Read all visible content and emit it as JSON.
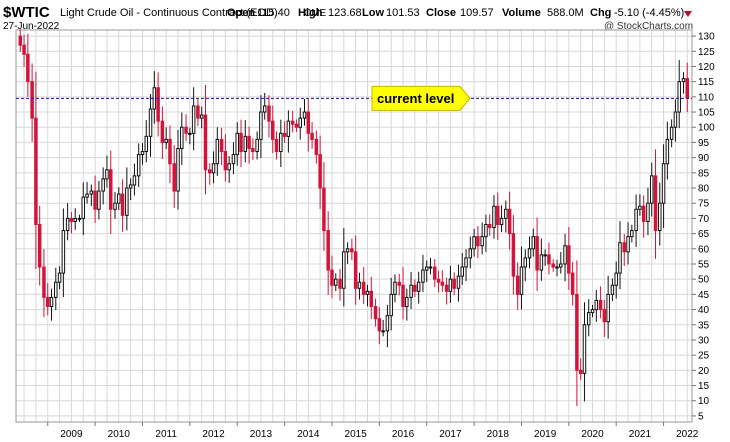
{
  "header": {
    "symbol": "$WTIC",
    "name": "Light Crude Oil - Continuous Contract (EOD)",
    "exchange": "CME",
    "date": "27-Jun-2022",
    "open_label": "Open",
    "open": "115.40",
    "high_label": "High",
    "high": "123.68",
    "low_label": "Low",
    "low": "101.53",
    "close_label": "Close",
    "close": "109.57",
    "volume_label": "Volume",
    "volume": "588.0M",
    "chg_label": "Chg",
    "chg": "-5.10 (-4.45%)",
    "watermark": "@ StockCharts.com"
  },
  "colors": {
    "up": "#111111",
    "down": "#d2143a",
    "level_line": "#1a1a8c",
    "callout_fill": "#ffff00",
    "grid": "#d8d8d8",
    "chg_marker": "#b0102a"
  },
  "chart_data": {
    "type": "candlestick",
    "frequency": "monthly",
    "y_range": [
      3,
      132
    ],
    "y_ticks": [
      5,
      10,
      15,
      20,
      25,
      30,
      35,
      40,
      45,
      50,
      55,
      60,
      65,
      70,
      75,
      80,
      85,
      90,
      95,
      100,
      105,
      110,
      115,
      120,
      125,
      130
    ],
    "x_labels": [
      "2009",
      "2010",
      "2011",
      "2012",
      "2013",
      "2014",
      "2015",
      "2016",
      "2017",
      "2018",
      "2019",
      "2020",
      "2021",
      "2022"
    ],
    "x_label_dates": [
      2009.0,
      2010.0,
      2011.0,
      2012.0,
      2013.0,
      2014.0,
      2015.0,
      2016.0,
      2017.0,
      2018.0,
      2019.0,
      2020.0,
      2021.0,
      2022.0
    ],
    "x_range": [
      2008.33,
      2022.6
    ],
    "annotation": {
      "text": "current level",
      "value": 109.5
    },
    "anchors": [
      [
        2008.42,
        127
      ],
      [
        2008.5,
        124
      ],
      [
        2008.58,
        115
      ],
      [
        2008.67,
        103
      ],
      [
        2008.75,
        68
      ],
      [
        2008.83,
        54
      ],
      [
        2008.92,
        44
      ],
      [
        2009.0,
        41
      ],
      [
        2009.08,
        44
      ],
      [
        2009.17,
        49
      ],
      [
        2009.25,
        52
      ],
      [
        2009.33,
        66
      ],
      [
        2009.42,
        70
      ],
      [
        2009.5,
        69
      ],
      [
        2009.58,
        70
      ],
      [
        2009.67,
        70
      ],
      [
        2009.75,
        77
      ],
      [
        2009.83,
        78
      ],
      [
        2009.92,
        79
      ],
      [
        2010.0,
        73
      ],
      [
        2010.08,
        79
      ],
      [
        2010.17,
        83
      ],
      [
        2010.25,
        86
      ],
      [
        2010.33,
        73
      ],
      [
        2010.42,
        75
      ],
      [
        2010.5,
        78
      ],
      [
        2010.58,
        71
      ],
      [
        2010.67,
        80
      ],
      [
        2010.75,
        81
      ],
      [
        2010.83,
        84
      ],
      [
        2010.92,
        91
      ],
      [
        2011.0,
        92
      ],
      [
        2011.08,
        97
      ],
      [
        2011.17,
        106
      ],
      [
        2011.25,
        113
      ],
      [
        2011.33,
        102
      ],
      [
        2011.42,
        95
      ],
      [
        2011.5,
        96
      ],
      [
        2011.58,
        88
      ],
      [
        2011.67,
        79
      ],
      [
        2011.75,
        93
      ],
      [
        2011.83,
        100
      ],
      [
        2011.92,
        98
      ],
      [
        2012.0,
        98
      ],
      [
        2012.08,
        107
      ],
      [
        2012.17,
        103
      ],
      [
        2012.25,
        104
      ],
      [
        2012.33,
        86
      ],
      [
        2012.42,
        85
      ],
      [
        2012.5,
        88
      ],
      [
        2012.58,
        96
      ],
      [
        2012.67,
        92
      ],
      [
        2012.75,
        86
      ],
      [
        2012.83,
        88
      ],
      [
        2012.92,
        91
      ],
      [
        2013.0,
        98
      ],
      [
        2013.08,
        92
      ],
      [
        2013.17,
        97
      ],
      [
        2013.25,
        93
      ],
      [
        2013.33,
        92
      ],
      [
        2013.42,
        96
      ],
      [
        2013.5,
        105
      ],
      [
        2013.58,
        107
      ],
      [
        2013.67,
        102
      ],
      [
        2013.75,
        96
      ],
      [
        2013.83,
        92
      ],
      [
        2013.92,
        98
      ],
      [
        2014.0,
        97
      ],
      [
        2014.08,
        102
      ],
      [
        2014.17,
        101
      ],
      [
        2014.25,
        100
      ],
      [
        2014.33,
        103
      ],
      [
        2014.42,
        105
      ],
      [
        2014.5,
        98
      ],
      [
        2014.58,
        96
      ],
      [
        2014.67,
        91
      ],
      [
        2014.75,
        80
      ],
      [
        2014.83,
        66
      ],
      [
        2014.92,
        53
      ],
      [
        2015.0,
        48
      ],
      [
        2015.08,
        50
      ],
      [
        2015.17,
        47
      ],
      [
        2015.25,
        59
      ],
      [
        2015.33,
        60
      ],
      [
        2015.42,
        59
      ],
      [
        2015.5,
        47
      ],
      [
        2015.58,
        49
      ],
      [
        2015.67,
        45
      ],
      [
        2015.75,
        46
      ],
      [
        2015.83,
        41
      ],
      [
        2015.92,
        37
      ],
      [
        2016.0,
        33
      ],
      [
        2016.08,
        33
      ],
      [
        2016.17,
        38
      ],
      [
        2016.25,
        45
      ],
      [
        2016.33,
        49
      ],
      [
        2016.42,
        48
      ],
      [
        2016.5,
        41
      ],
      [
        2016.58,
        44
      ],
      [
        2016.67,
        48
      ],
      [
        2016.75,
        46
      ],
      [
        2016.83,
        49
      ],
      [
        2016.92,
        53
      ],
      [
        2017.0,
        54
      ],
      [
        2017.08,
        54
      ],
      [
        2017.17,
        50
      ],
      [
        2017.25,
        49
      ],
      [
        2017.33,
        48
      ],
      [
        2017.42,
        46
      ],
      [
        2017.5,
        50
      ],
      [
        2017.58,
        47
      ],
      [
        2017.67,
        51
      ],
      [
        2017.75,
        54
      ],
      [
        2017.83,
        57
      ],
      [
        2017.92,
        60
      ],
      [
        2018.0,
        64
      ],
      [
        2018.08,
        61
      ],
      [
        2018.17,
        64
      ],
      [
        2018.25,
        68
      ],
      [
        2018.33,
        67
      ],
      [
        2018.42,
        74
      ],
      [
        2018.5,
        68
      ],
      [
        2018.58,
        70
      ],
      [
        2018.67,
        73
      ],
      [
        2018.75,
        65
      ],
      [
        2018.83,
        51
      ],
      [
        2018.92,
        45
      ],
      [
        2019.0,
        54
      ],
      [
        2019.08,
        57
      ],
      [
        2019.17,
        60
      ],
      [
        2019.25,
        64
      ],
      [
        2019.33,
        53
      ],
      [
        2019.42,
        58
      ],
      [
        2019.5,
        58
      ],
      [
        2019.58,
        55
      ],
      [
        2019.67,
        54
      ],
      [
        2019.75,
        54
      ],
      [
        2019.83,
        55
      ],
      [
        2019.92,
        61
      ],
      [
        2020.0,
        52
      ],
      [
        2020.08,
        45
      ],
      [
        2020.17,
        20
      ],
      [
        2020.25,
        19
      ],
      [
        2020.33,
        35
      ],
      [
        2020.42,
        39
      ],
      [
        2020.5,
        40
      ],
      [
        2020.58,
        43
      ],
      [
        2020.67,
        40
      ],
      [
        2020.75,
        36
      ],
      [
        2020.83,
        45
      ],
      [
        2020.92,
        48
      ],
      [
        2021.0,
        52
      ],
      [
        2021.08,
        62
      ],
      [
        2021.17,
        59
      ],
      [
        2021.25,
        64
      ],
      [
        2021.33,
        66
      ],
      [
        2021.42,
        73
      ],
      [
        2021.5,
        74
      ],
      [
        2021.58,
        69
      ],
      [
        2021.67,
        75
      ],
      [
        2021.75,
        84
      ],
      [
        2021.83,
        66
      ],
      [
        2021.92,
        75
      ],
      [
        2022.0,
        88
      ],
      [
        2022.08,
        96
      ],
      [
        2022.17,
        100
      ],
      [
        2022.25,
        105
      ],
      [
        2022.33,
        115
      ],
      [
        2022.42,
        116
      ],
      [
        2022.5,
        109.6
      ]
    ]
  }
}
